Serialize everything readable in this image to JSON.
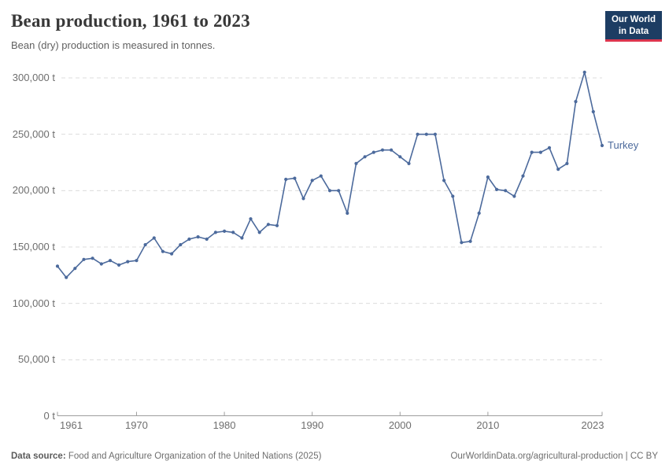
{
  "header": {
    "title": "Bean production, 1961 to 2023",
    "subtitle": "Bean (dry) production is measured in tonnes.",
    "logo": {
      "line1": "Our World",
      "line2": "in Data"
    }
  },
  "chart_data": {
    "type": "line",
    "title": "Bean production, 1961 to 2023",
    "unit": "t",
    "xlim": [
      1961,
      2023
    ],
    "ylim": [
      0,
      300000
    ],
    "grid": "horizontal-dashed",
    "legend_position": "end-of-line-label",
    "x_ticks": [
      1961,
      1970,
      1980,
      1990,
      2000,
      2010,
      2023
    ],
    "y_ticks": [
      {
        "value": 0,
        "label": "0 t"
      },
      {
        "value": 50000,
        "label": "50,000 t"
      },
      {
        "value": 100000,
        "label": "100,000 t"
      },
      {
        "value": 150000,
        "label": "150,000 t"
      },
      {
        "value": 200000,
        "label": "200,000 t"
      },
      {
        "value": 250000,
        "label": "250,000 t"
      },
      {
        "value": 300000,
        "label": "300,000 t"
      }
    ],
    "series": [
      {
        "name": "Turkey",
        "color": "#4C6A9C",
        "x": [
          1961,
          1962,
          1963,
          1964,
          1965,
          1966,
          1967,
          1968,
          1969,
          1970,
          1971,
          1972,
          1973,
          1974,
          1975,
          1976,
          1977,
          1978,
          1979,
          1980,
          1981,
          1982,
          1983,
          1984,
          1985,
          1986,
          1987,
          1988,
          1989,
          1990,
          1991,
          1992,
          1993,
          1994,
          1995,
          1996,
          1997,
          1998,
          1999,
          2000,
          2001,
          2002,
          2003,
          2004,
          2005,
          2006,
          2007,
          2008,
          2009,
          2010,
          2011,
          2012,
          2013,
          2014,
          2015,
          2016,
          2017,
          2018,
          2019,
          2020,
          2021,
          2022,
          2023
        ],
        "values": [
          133000,
          123000,
          131000,
          139000,
          140000,
          135000,
          138000,
          134000,
          137000,
          138000,
          152000,
          158000,
          146000,
          144000,
          152000,
          157000,
          159000,
          157000,
          163000,
          164000,
          163000,
          158000,
          175000,
          163000,
          170000,
          169000,
          210000,
          211000,
          193000,
          209000,
          213000,
          200000,
          200000,
          180000,
          224000,
          230000,
          234000,
          236000,
          236000,
          230000,
          224000,
          250000,
          250000,
          250000,
          209000,
          195000,
          154000,
          155000,
          180000,
          212000,
          201000,
          200000,
          195000,
          213000,
          234000,
          234000,
          238000,
          219000,
          224000,
          279000,
          305000,
          270000,
          240000
        ]
      }
    ]
  },
  "footer": {
    "source_label": "Data source:",
    "source_text": "Food and Agriculture Organization of the United Nations (2025)",
    "right_text": "OurWorldinData.org/agricultural-production | CC BY"
  }
}
